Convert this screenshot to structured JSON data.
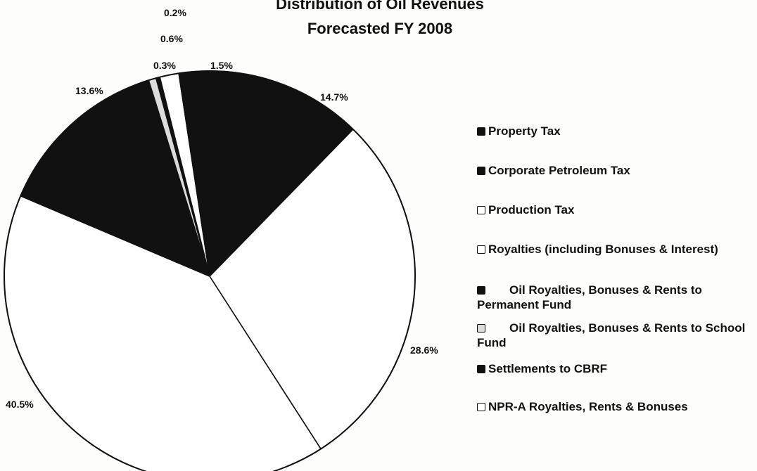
{
  "chart_data": {
    "type": "pie",
    "title": "Distribution of Oil Revenues",
    "subtitle": "Forecasted FY 2008",
    "legend_position": "right",
    "slices": [
      {
        "name": "Property Tax",
        "value": 14.7,
        "label": "14.7%",
        "color": "#111111"
      },
      {
        "name": "Corporate Petroleum Tax",
        "value": 13.6,
        "label": "13.6%",
        "color": "#111111"
      },
      {
        "name": "Production Tax",
        "value": 40.5,
        "label": "40.5%",
        "color": "#ffffff"
      },
      {
        "name": "Royalties (including Bonuses & Interest)",
        "value": 28.6,
        "label": "28.6%",
        "color": "#ffffff"
      },
      {
        "name": "Oil Royalties, Bonuses & Rents to Permanent Fund",
        "value": 0.2,
        "label": "0.2%",
        "color": "#111111"
      },
      {
        "name": "Oil Royalties, Bonuses & Rents to School Fund",
        "value": 0.6,
        "label": "0.6%",
        "color": "#dcdcdc"
      },
      {
        "name": "Settlements to CBRF",
        "value": 0.3,
        "label": "0.3%",
        "color": "#111111"
      },
      {
        "name": "NPR-A Royalties, Rents & Bonuses",
        "value": 1.5,
        "label": "1.5%",
        "color": "#ffffff"
      }
    ]
  },
  "legend": [
    {
      "label": "Property Tax",
      "color": "#111111"
    },
    {
      "label": "Corporate Petroleum Tax",
      "color": "#111111"
    },
    {
      "label": "Production Tax",
      "color": "#ffffff"
    },
    {
      "label": "Royalties (including Bonuses & Interest)",
      "color": "#ffffff"
    },
    {
      "label": "Oil Royalties, Bonuses & Rents to Permanent Fund",
      "color": "#111111"
    },
    {
      "label": "Oil Royalties, Bonuses & Rents to School Fund",
      "color": "#dcdcdc"
    },
    {
      "label": "Settlements to CBRF",
      "color": "#111111"
    },
    {
      "label": "NPR-A Royalties, Rents & Bonuses",
      "color": "#ffffff"
    }
  ]
}
